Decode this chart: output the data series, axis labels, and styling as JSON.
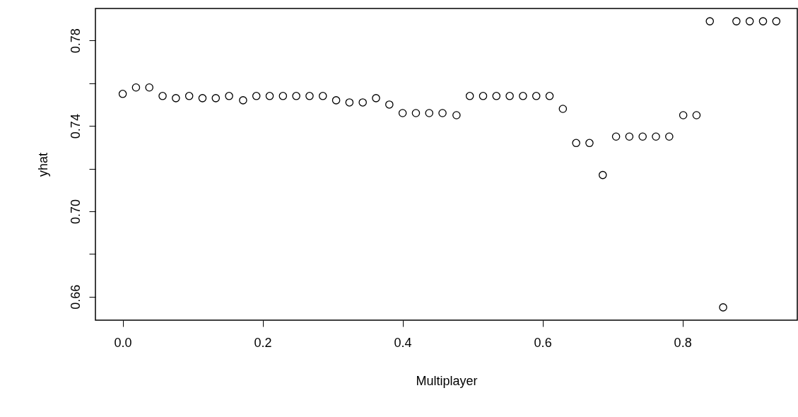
{
  "chart_data": {
    "type": "scatter",
    "xlabel": "Multiplayer",
    "ylabel": "yhat",
    "x": [
      0,
      0.019,
      0.038,
      0.057,
      0.076,
      0.095,
      0.114,
      0.133,
      0.152,
      0.172,
      0.191,
      0.21,
      0.229,
      0.248,
      0.267,
      0.286,
      0.305,
      0.324,
      0.343,
      0.362,
      0.381,
      0.4,
      0.419,
      0.438,
      0.457,
      0.477,
      0.496,
      0.515,
      0.534,
      0.553,
      0.572,
      0.591,
      0.61,
      0.629,
      0.648,
      0.667,
      0.686,
      0.705,
      0.724,
      0.743,
      0.762,
      0.781,
      0.801,
      0.82,
      0.839,
      0.858,
      0.877,
      0.896,
      0.915,
      0.934
    ],
    "series": [
      {
        "color": "#000000",
        "values": [
          0.755,
          0.758,
          0.758,
          0.754,
          0.753,
          0.754,
          0.753,
          0.753,
          0.754,
          0.752,
          0.754,
          0.754,
          0.754,
          0.754,
          0.754,
          0.754,
          0.752,
          0.751,
          0.751,
          0.753,
          0.75,
          0.746,
          0.746,
          0.746,
          0.746,
          0.745,
          0.754,
          0.754,
          0.754,
          0.754,
          0.754,
          0.754,
          0.754,
          0.748,
          0.732,
          0.732,
          0.717,
          0.735,
          0.735,
          0.735,
          0.735,
          0.735,
          0.745,
          0.745,
          0.789,
          0.655,
          0.789,
          0.789,
          0.789,
          0.789
        ]
      }
    ],
    "xlim": [
      -0.039,
      0.964
    ],
    "ylim": [
      0.649,
      0.795
    ],
    "xticks": [
      {
        "value": 0,
        "label": "0.0"
      },
      0.2,
      0.4,
      0.6,
      0.8
    ],
    "yticks": [
      0.66,
      {
        "value": 0.68,
        "label": null
      },
      {
        "value": 0.7,
        "label": "0.70"
      },
      {
        "value": 0.72,
        "label": null
      },
      0.74,
      {
        "value": 0.76,
        "label": null
      },
      0.78
    ],
    "grid": false,
    "marker": "circle"
  }
}
